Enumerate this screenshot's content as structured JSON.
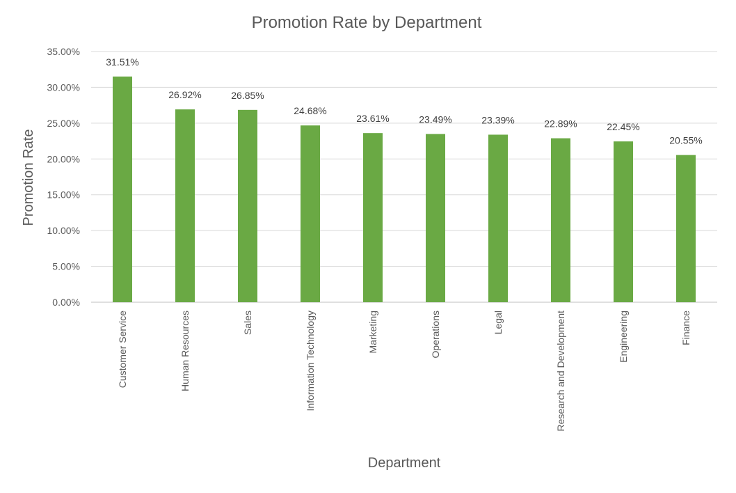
{
  "chart_data": {
    "type": "bar",
    "title": "Promotion Rate by Department",
    "xlabel": "Department",
    "ylabel": "Promotion Rate",
    "categories": [
      "Customer Service",
      "Human Resources",
      "Sales",
      "Information Technology",
      "Marketing",
      "Operations",
      "Legal",
      "Research and Development",
      "Engineering",
      "Finance"
    ],
    "values": [
      31.51,
      26.92,
      26.85,
      24.68,
      23.61,
      23.49,
      23.39,
      22.89,
      22.45,
      20.55
    ],
    "data_labels": [
      "31.51%",
      "26.92%",
      "26.85%",
      "24.68%",
      "23.61%",
      "23.49%",
      "23.39%",
      "22.89%",
      "22.45%",
      "20.55%"
    ],
    "y_ticks": [
      "0.00%",
      "5.00%",
      "10.00%",
      "15.00%",
      "20.00%",
      "25.00%",
      "30.00%",
      "35.00%"
    ],
    "ylim": [
      0,
      35
    ],
    "grid": true,
    "legend": "none",
    "bar_color": "#6aa944",
    "grid_color": "#d9d9d9"
  }
}
